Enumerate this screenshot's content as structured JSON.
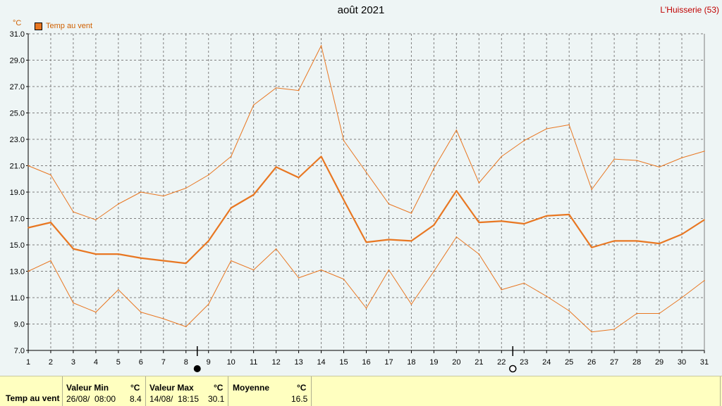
{
  "header": {
    "title": "août 2021",
    "station": "L'Huisserie (53)",
    "unit": "°C"
  },
  "colors": {
    "series": "#e87722",
    "grid": "#808080",
    "station": "#c00000",
    "footer_bg": "#ffffc0"
  },
  "chart_data": {
    "type": "line",
    "title": "août 2021",
    "ylabel": "°C",
    "ylim": [
      7.0,
      31.0
    ],
    "yticks": [
      "7.0",
      "9.0",
      "11.0",
      "13.0",
      "15.0",
      "17.0",
      "19.0",
      "21.0",
      "23.0",
      "25.0",
      "27.0",
      "29.0",
      "31.0"
    ],
    "x": [
      1,
      2,
      3,
      4,
      5,
      6,
      7,
      8,
      9,
      10,
      11,
      12,
      13,
      14,
      15,
      16,
      17,
      18,
      19,
      20,
      21,
      22,
      23,
      24,
      25,
      26,
      27,
      28,
      29,
      30,
      31
    ],
    "series": [
      {
        "name": "Temp au vent",
        "role": "mean",
        "values": [
          16.3,
          16.7,
          14.7,
          14.3,
          14.3,
          14.0,
          13.8,
          13.6,
          15.3,
          17.8,
          18.8,
          20.9,
          20.1,
          21.7,
          18.4,
          15.2,
          15.4,
          15.3,
          16.5,
          19.1,
          16.7,
          16.8,
          16.6,
          17.2,
          17.3,
          14.8,
          15.3,
          15.3,
          15.1,
          15.8,
          16.9
        ]
      },
      {
        "role": "max",
        "values": [
          21.0,
          20.3,
          17.5,
          16.9,
          18.1,
          19.0,
          18.7,
          19.3,
          20.3,
          21.7,
          25.6,
          26.9,
          26.7,
          30.1,
          22.9,
          20.5,
          18.1,
          17.4,
          20.8,
          23.7,
          19.7,
          21.7,
          22.9,
          23.8,
          24.1,
          19.2,
          21.5,
          21.4,
          20.9,
          21.6,
          22.1
        ]
      },
      {
        "role": "min",
        "values": [
          13.0,
          13.8,
          10.6,
          9.9,
          11.6,
          9.9,
          9.4,
          8.8,
          10.5,
          13.8,
          13.1,
          14.7,
          12.5,
          13.1,
          12.4,
          10.2,
          13.1,
          10.5,
          13.0,
          15.6,
          14.3,
          11.6,
          12.1,
          11.1,
          10.0,
          8.4,
          8.6,
          9.8,
          9.8,
          11.0,
          12.3
        ]
      }
    ],
    "moon_phases": [
      {
        "day": 8.5,
        "phase": "full"
      },
      {
        "day": 22.5,
        "phase": "new"
      }
    ],
    "grid": true,
    "legend": "top-left"
  },
  "footer": {
    "series_label": "Temp au vent",
    "min_header": "Valeur Min",
    "min_unit": "°C",
    "min_date": "26/08/  08:00",
    "min_value": "8.4",
    "max_header": "Valeur Max",
    "max_unit": "°C",
    "max_date": "14/08/  18:15",
    "max_value": "30.1",
    "avg_header": "Moyenne",
    "avg_unit": "°C",
    "avg_value": "16.5"
  }
}
